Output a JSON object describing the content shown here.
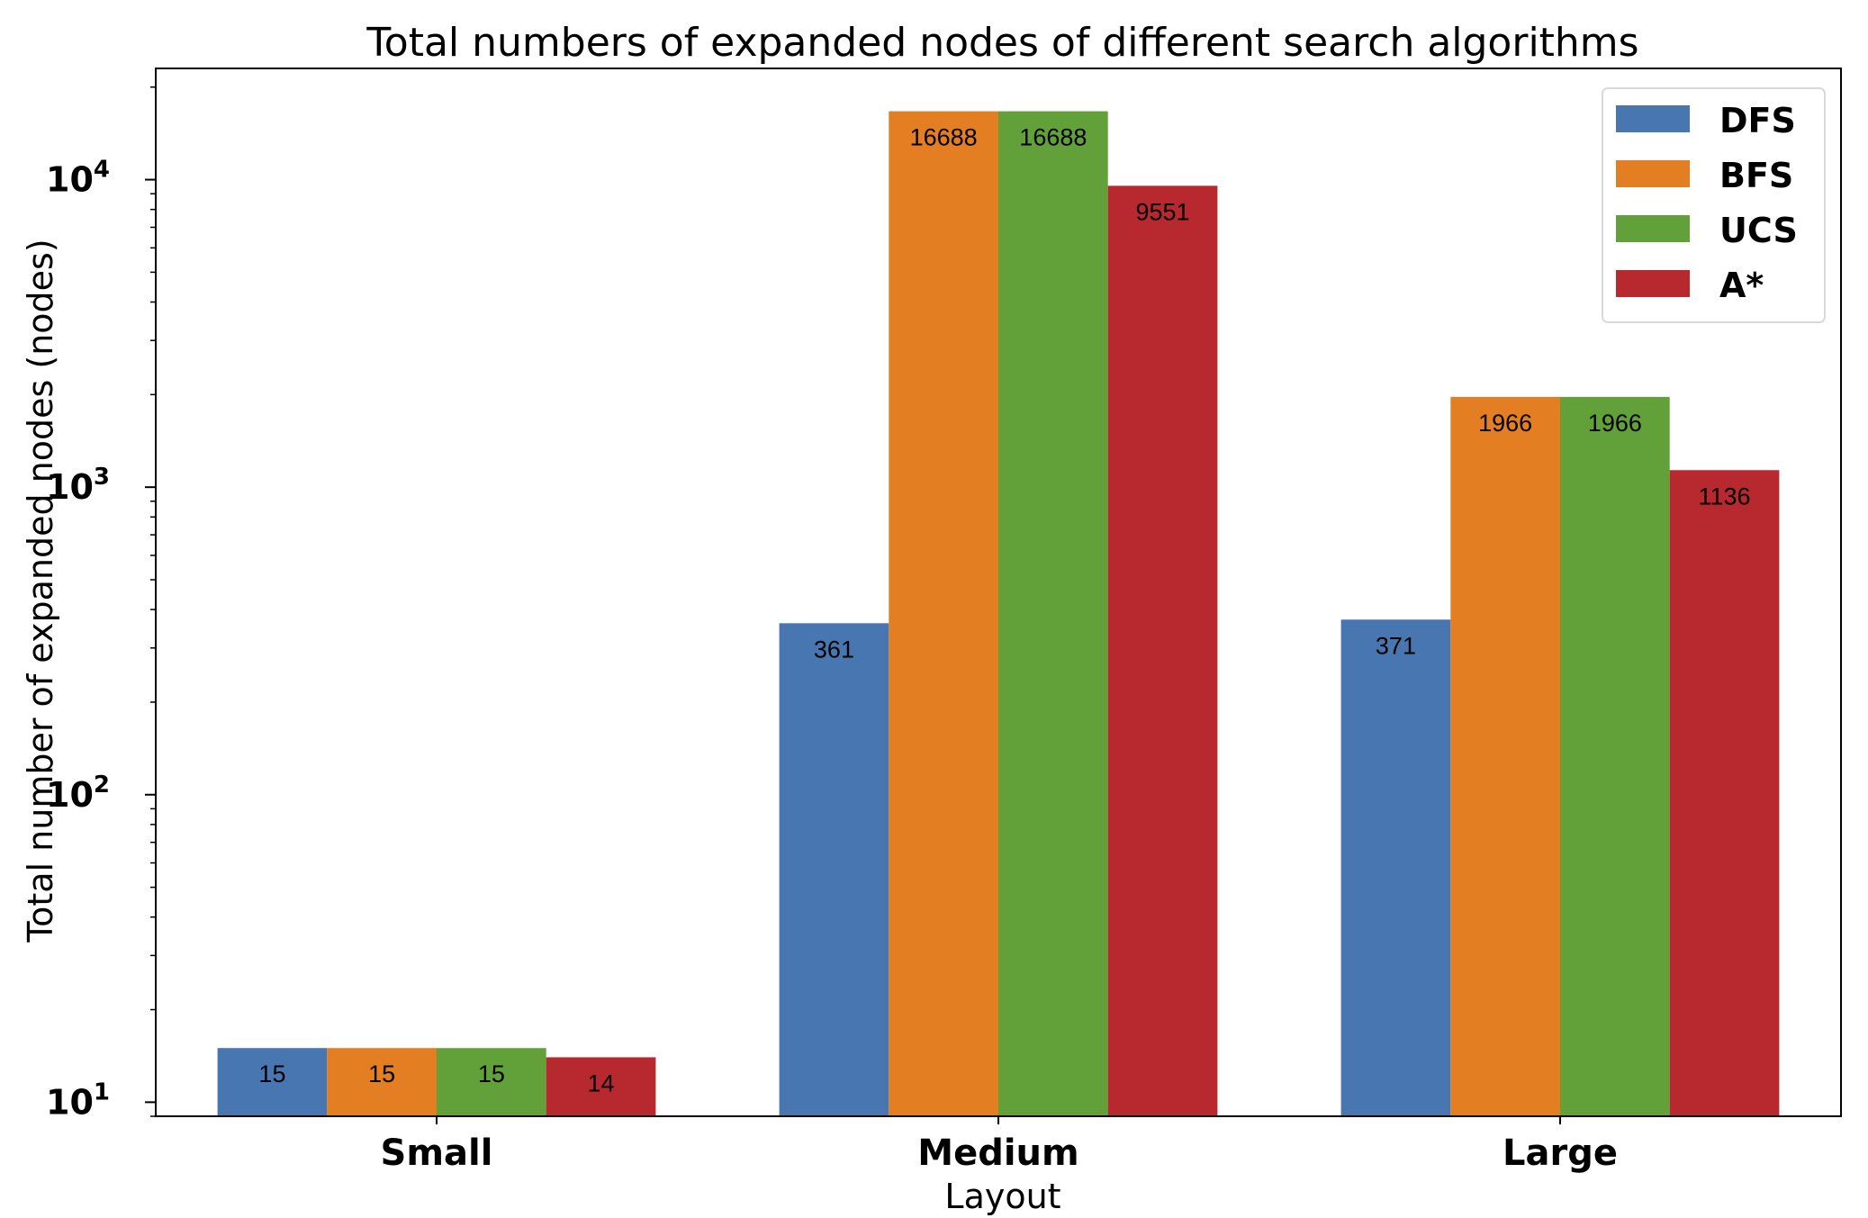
{
  "chart_data": {
    "type": "bar",
    "title": "Total numbers of expanded nodes of different search algorithms",
    "xlabel": "Layout",
    "ylabel": "Total number of expanded nodes (nodes)",
    "yscale": "log",
    "ylim": [
      9,
      23000
    ],
    "categories": [
      "Small",
      "Medium",
      "Large"
    ],
    "yticks": [
      {
        "value": 10,
        "base": "10",
        "exp": "1"
      },
      {
        "value": 100,
        "base": "10",
        "exp": "2"
      },
      {
        "value": 1000,
        "base": "10",
        "exp": "3"
      },
      {
        "value": 10000,
        "base": "10",
        "exp": "4"
      }
    ],
    "legend_position": "top-right",
    "grid": false,
    "series": [
      {
        "name": "DFS",
        "color": "#4876b0",
        "values": [
          15,
          361,
          371
        ]
      },
      {
        "name": "BFS",
        "color": "#e37f22",
        "values": [
          15,
          16688,
          1966
        ]
      },
      {
        "name": "UCS",
        "color": "#62a039",
        "values": [
          15,
          16688,
          1966
        ]
      },
      {
        "name": "A*",
        "color": "#b8292f",
        "values": [
          14,
          9551,
          1136
        ]
      }
    ]
  }
}
